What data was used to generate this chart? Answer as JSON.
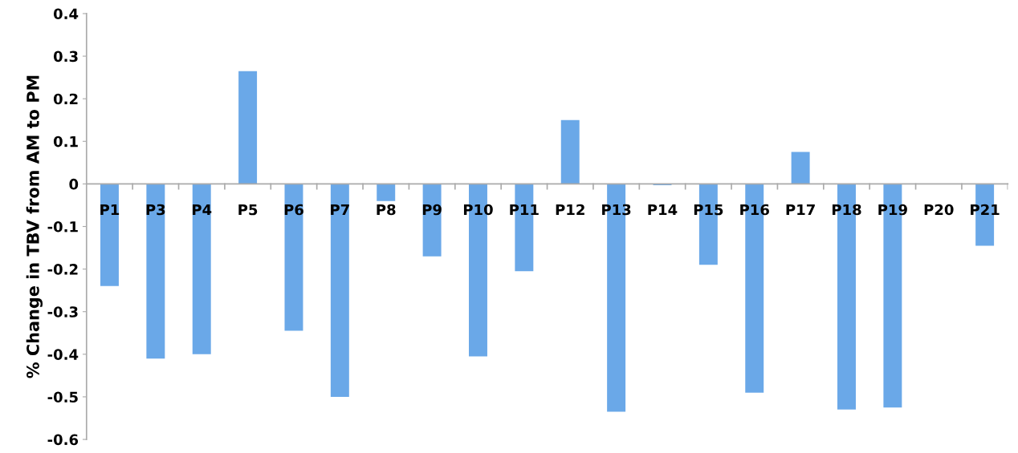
{
  "chart_data": {
    "type": "bar",
    "ylabel": "% Change in TBV from AM to PM",
    "categories": [
      "P1",
      "P3",
      "P4",
      "P5",
      "P6",
      "P7",
      "P8",
      "P9",
      "P10",
      "P11",
      "P12",
      "P13",
      "P14",
      "P15",
      "P16",
      "P17",
      "P18",
      "P19",
      "P20",
      "P21"
    ],
    "values": [
      -0.24,
      -0.41,
      -0.4,
      0.265,
      -0.345,
      -0.5,
      -0.04,
      -0.17,
      -0.405,
      -0.205,
      0.15,
      -0.535,
      -0.003,
      -0.19,
      -0.49,
      0.075,
      -0.53,
      -0.525,
      0,
      -0.145
    ],
    "color": "#6aa8e8",
    "ylim": [
      -0.6,
      0.4
    ],
    "yticks": [
      -0.6,
      -0.5,
      -0.4,
      -0.3,
      -0.2,
      -0.1,
      0,
      0.1,
      0.2,
      0.3,
      0.4
    ],
    "grid": false
  }
}
